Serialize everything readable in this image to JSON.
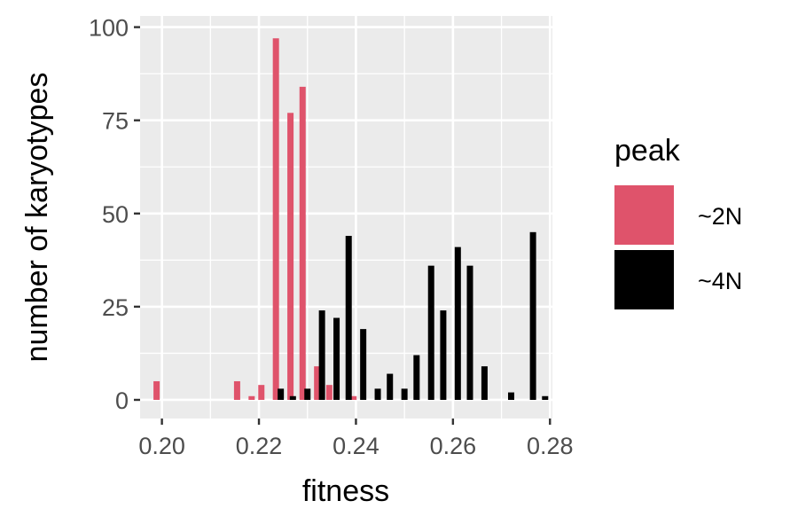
{
  "chart_data": {
    "type": "bar",
    "title": "",
    "xlabel": "fitness",
    "ylabel": "number of karyotypes",
    "xlim": [
      0.1955,
      0.2805
    ],
    "ylim": [
      -5,
      103
    ],
    "x_ticks": [
      0.2,
      0.22,
      0.24,
      0.26,
      0.28
    ],
    "x_tick_labels": [
      "0.20",
      "0.22",
      "0.24",
      "0.26",
      "0.28"
    ],
    "y_ticks": [
      0,
      25,
      50,
      75,
      100
    ],
    "y_tick_labels": [
      "0",
      "25",
      "50",
      "75",
      "100"
    ],
    "grid": true,
    "legend": {
      "title": "peak",
      "position": "right"
    },
    "series": [
      {
        "name": "~2N",
        "color": "#df536b",
        "points": [
          {
            "x": 0.1989,
            "y": 5
          },
          {
            "x": 0.2155,
            "y": 5
          },
          {
            "x": 0.2185,
            "y": 1
          },
          {
            "x": 0.2205,
            "y": 4
          },
          {
            "x": 0.2235,
            "y": 97
          },
          {
            "x": 0.2265,
            "y": 77
          },
          {
            "x": 0.229,
            "y": 84
          },
          {
            "x": 0.232,
            "y": 9
          },
          {
            "x": 0.2345,
            "y": 4
          },
          {
            "x": 0.2395,
            "y": 1
          }
        ]
      },
      {
        "name": "~4N",
        "color": "#000000",
        "points": [
          {
            "x": 0.2245,
            "y": 3
          },
          {
            "x": 0.227,
            "y": 1
          },
          {
            "x": 0.23,
            "y": 3
          },
          {
            "x": 0.233,
            "y": 24
          },
          {
            "x": 0.236,
            "y": 22
          },
          {
            "x": 0.2385,
            "y": 44
          },
          {
            "x": 0.2415,
            "y": 19
          },
          {
            "x": 0.2445,
            "y": 3
          },
          {
            "x": 0.247,
            "y": 7
          },
          {
            "x": 0.25,
            "y": 3
          },
          {
            "x": 0.2525,
            "y": 12
          },
          {
            "x": 0.2555,
            "y": 36
          },
          {
            "x": 0.258,
            "y": 24
          },
          {
            "x": 0.261,
            "y": 41
          },
          {
            "x": 0.2635,
            "y": 36
          },
          {
            "x": 0.2665,
            "y": 9
          },
          {
            "x": 0.272,
            "y": 2
          },
          {
            "x": 0.2765,
            "y": 45
          },
          {
            "x": 0.279,
            "y": 1
          }
        ]
      }
    ]
  }
}
